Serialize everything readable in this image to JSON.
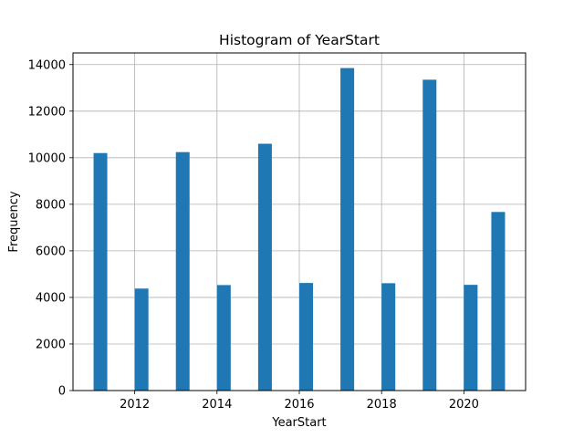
{
  "chart_data": {
    "type": "bar",
    "title": "Histogram of YearStart",
    "xlabel": "YearStart",
    "ylabel": "Frequency",
    "xlim": [
      2010.5,
      2021.5
    ],
    "ylim": [
      0,
      14500
    ],
    "xticks": [
      2012,
      2014,
      2016,
      2018,
      2020
    ],
    "yticks": [
      0,
      2000,
      4000,
      6000,
      8000,
      10000,
      12000,
      14000
    ],
    "grid": true,
    "bar_color": "#1f77b4",
    "bin_width": 0.333,
    "bins": [
      {
        "x": 2011,
        "value": 10200
      },
      {
        "x": 2012,
        "value": 4380
      },
      {
        "x": 2013,
        "value": 10240
      },
      {
        "x": 2014,
        "value": 4530
      },
      {
        "x": 2015,
        "value": 10600
      },
      {
        "x": 2016,
        "value": 4620
      },
      {
        "x": 2017,
        "value": 13850
      },
      {
        "x": 2018,
        "value": 4610
      },
      {
        "x": 2019,
        "value": 13350
      },
      {
        "x": 2020,
        "value": 4540
      },
      {
        "x": 2020.667,
        "value": 7670
      }
    ]
  }
}
